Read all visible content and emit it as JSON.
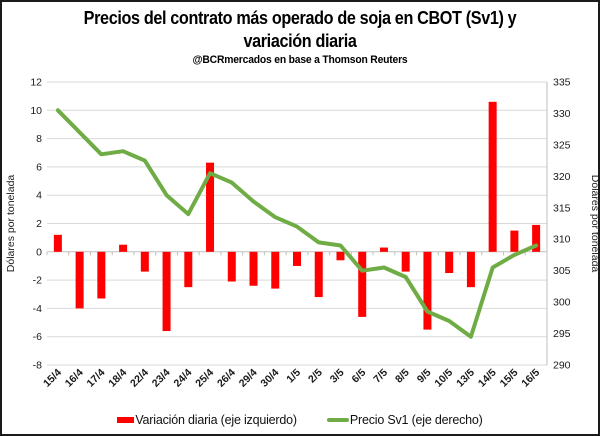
{
  "header": {
    "title_line1": "Precios del contrato más operado de soja en CBOT (Sv1) y",
    "title_line2": "variación diaria",
    "subtitle": "@BCRmercados en base a Thomson Reuters"
  },
  "chart_data": {
    "type": "bar",
    "title": "Precios del contrato más operado de soja en CBOT (Sv1) y variación diaria",
    "subtitle": "@BCRmercados en base a Thomson Reuters",
    "categories": [
      "15/4",
      "16/4",
      "17/4",
      "18/4",
      "22/4",
      "23/4",
      "24/4",
      "25/4",
      "26/4",
      "29/4",
      "30/4",
      "1/5",
      "2/5",
      "3/5",
      "6/5",
      "7/5",
      "8/5",
      "9/5",
      "10/5",
      "13/5",
      "14/5",
      "15/5",
      "16/5"
    ],
    "series": [
      {
        "name": "Variación diaria (eje izquierdo)",
        "type": "bar",
        "axis": "left",
        "color": "#FF0000",
        "values": [
          1.2,
          -4.0,
          -3.3,
          0.5,
          -1.4,
          -5.6,
          -2.5,
          6.3,
          -2.1,
          -2.4,
          -2.6,
          -1.0,
          -3.2,
          -0.6,
          -4.6,
          0.3,
          -1.4,
          -5.5,
          -1.5,
          -2.5,
          10.6,
          1.5,
          1.9
        ]
      },
      {
        "name": "Precio Sv1 (eje derecho)",
        "type": "line",
        "axis": "right",
        "color": "#6FAC46",
        "values": [
          330.5,
          327,
          323.5,
          324,
          322.5,
          317,
          314,
          320.5,
          319,
          316,
          313.5,
          312,
          309.5,
          309,
          305,
          305.5,
          304,
          298.5,
          297,
          294.5,
          305.5,
          307.5,
          309
        ]
      }
    ],
    "left_axis": {
      "label": "Dólares por tonelada",
      "min": -8,
      "max": 12,
      "tick_step": 2,
      "ticks": [
        12,
        10,
        8,
        6,
        4,
        2,
        0,
        -2,
        -4,
        -6,
        -8
      ]
    },
    "right_axis": {
      "label": "Dólares por tonelada",
      "min": 290,
      "max": 335,
      "tick_step": 5,
      "ticks": [
        335,
        330,
        325,
        320,
        315,
        310,
        305,
        300,
        295,
        290
      ]
    },
    "grid": true,
    "legend_position": "bottom"
  },
  "legend": {
    "items": [
      {
        "label": "Variación diaria (eje izquierdo)",
        "color": "#FF0000",
        "shape": "bar"
      },
      {
        "label": "Precio Sv1 (eje derecho)",
        "color": "#6FAC46",
        "shape": "line"
      }
    ]
  },
  "colors": {
    "background": "#ffffff",
    "frame_border": "#1a1a1a",
    "gridline": "#D9D9D9",
    "zero_axis": "#BFBFBF",
    "tick_text": "#1a1a1a",
    "axis_title_text": "#1a1a1a",
    "bar": "#FF0000",
    "line": "#6FAC46"
  }
}
